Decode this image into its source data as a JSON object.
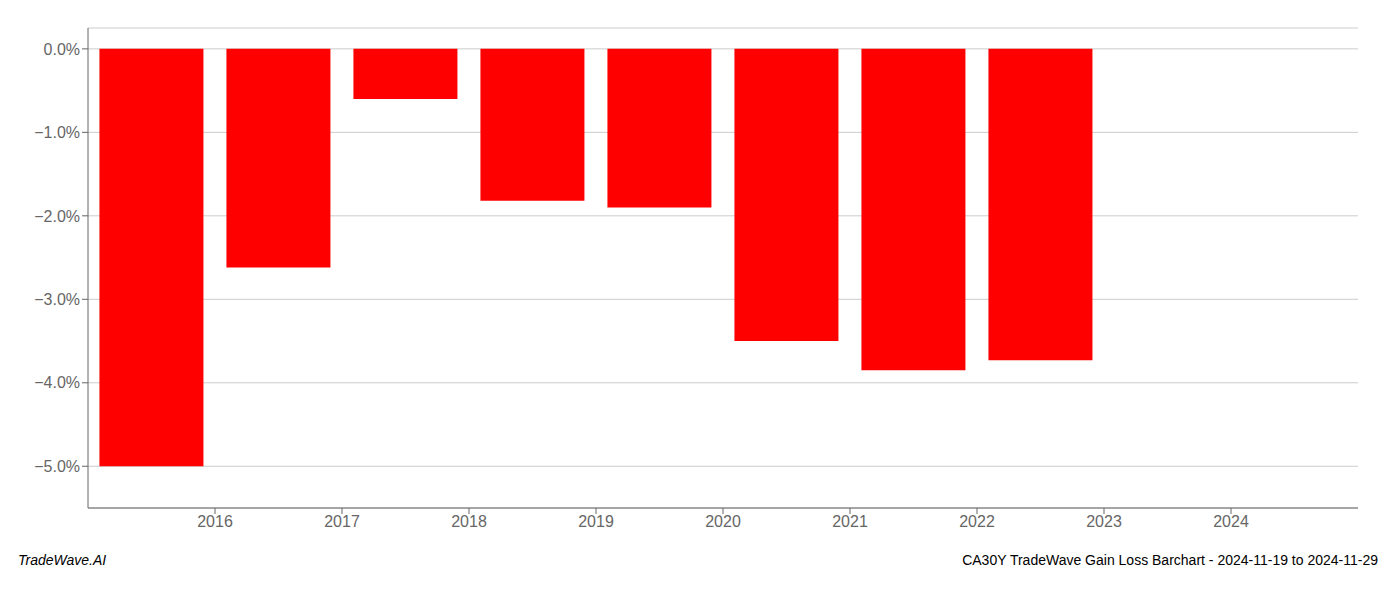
{
  "chart_data": {
    "type": "bar",
    "title": "CA30Y TradeWave Gain Loss Barchart - 2024-11-19 to 2024-11-29",
    "annotations": [
      "TradeWave.AI"
    ],
    "x": [
      2015.5,
      2016.5,
      2017.5,
      2018.5,
      2019.5,
      2020.5,
      2021.5,
      2022.5,
      2023.5
    ],
    "values": [
      -5.0,
      -2.62,
      -0.6,
      -1.82,
      -1.9,
      -3.5,
      -3.85,
      -3.73,
      0.0
    ],
    "color": "#ff0000",
    "xlim": [
      2015.0,
      2025.0
    ],
    "xticks": [
      2016,
      2017,
      2018,
      2019,
      2020,
      2021,
      2022,
      2023,
      2024
    ],
    "ylim": [
      -5.5,
      0.25
    ],
    "yticks": [
      {
        "value": 0.0,
        "label": "0.0%"
      },
      {
        "value": -1.0,
        "label": "−1.0%"
      },
      {
        "value": -2.0,
        "label": "−2.0%"
      },
      {
        "value": -3.0,
        "label": "−3.0%"
      },
      {
        "value": -4.0,
        "label": "−4.0%"
      },
      {
        "value": -5.0,
        "label": "−5.0%"
      }
    ],
    "grid": true
  }
}
